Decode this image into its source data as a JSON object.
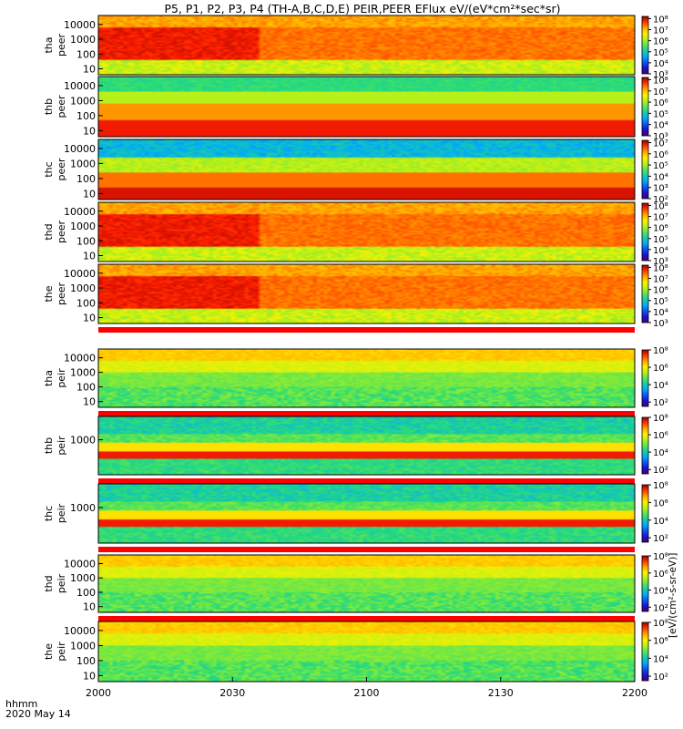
{
  "chart_data": {
    "type": "heatmap",
    "title": "P5, P1, P2, P3, P4 (TH-A,B,C,D,E) PEIR,PEER EFlux eV/(eV*cm²*sec*sr)",
    "x_ticks": [
      "2000",
      "2030",
      "2100",
      "2130",
      "2200"
    ],
    "x_label_line1": "hhmm",
    "x_label_line2": "2020 May 14",
    "colorbar_label": "[eV/(cm²-s-sr-eV)]",
    "colorbar_cmap": "rainbow",
    "panels": [
      {
        "probe": "tha",
        "kind": "peer",
        "yticks": [
          "10",
          "100",
          "1000",
          "10000"
        ],
        "ylog": [
          0.6,
          4.6
        ],
        "cbar_ticks": [
          "10⁸",
          "10⁷",
          "10⁶",
          "10⁵",
          "10⁴",
          "10³"
        ],
        "cbar_range": [
          3,
          8.2
        ],
        "gap_after": false
      },
      {
        "probe": "thb",
        "kind": "peer",
        "yticks": [
          "10",
          "100",
          "1000",
          "10000"
        ],
        "ylog": [
          0.6,
          4.6
        ],
        "cbar_ticks": [
          "10⁸",
          "10⁷",
          "10⁶",
          "10⁵",
          "10⁴",
          "10³"
        ],
        "cbar_range": [
          3,
          8.2
        ],
        "gap_after": false
      },
      {
        "probe": "thc",
        "kind": "peer",
        "yticks": [
          "10",
          "100",
          "1000",
          "10000"
        ],
        "ylog": [
          0.6,
          4.6
        ],
        "cbar_ticks": [
          "10⁷",
          "10⁶",
          "10⁵",
          "10⁴",
          "10³",
          "10²"
        ],
        "cbar_range": [
          2,
          7.2
        ],
        "gap_after": false
      },
      {
        "probe": "thd",
        "kind": "peer",
        "yticks": [
          "10",
          "100",
          "1000",
          "10000"
        ],
        "ylog": [
          0.6,
          4.6
        ],
        "cbar_ticks": [
          "10⁸",
          "10⁷",
          "10⁶",
          "10⁵",
          "10⁴",
          "10³"
        ],
        "cbar_range": [
          3,
          8.2
        ],
        "gap_after": false
      },
      {
        "probe": "the",
        "kind": "peer",
        "yticks": [
          "10",
          "100",
          "1000",
          "10000"
        ],
        "ylog": [
          0.6,
          4.6
        ],
        "cbar_ticks": [
          "10⁸",
          "10⁷",
          "10⁶",
          "10⁵",
          "10⁴",
          "10³"
        ],
        "cbar_range": [
          3,
          8.2
        ],
        "gap_after": true
      },
      {
        "probe": "tha",
        "kind": "peir",
        "yticks": [
          "10",
          "100",
          "1000",
          "10000"
        ],
        "ylog": [
          0.6,
          4.6
        ],
        "cbar_ticks": [
          "10⁸",
          "10⁶",
          "10⁴",
          "10²"
        ],
        "cbar_range": [
          1.5,
          8
        ],
        "gap_after": true
      },
      {
        "probe": "thb",
        "kind": "peir",
        "yticks": [
          "1000"
        ],
        "ylog": [
          0.6,
          4.6
        ],
        "cbar_ticks": [
          "10⁸",
          "10⁶",
          "10⁴",
          "10²"
        ],
        "cbar_range": [
          1.5,
          8
        ],
        "gap_after": true
      },
      {
        "probe": "thc",
        "kind": "peir",
        "yticks": [
          "1000"
        ],
        "ylog": [
          0.6,
          4.6
        ],
        "cbar_ticks": [
          "10⁸",
          "10⁶",
          "10⁴",
          "10²"
        ],
        "cbar_range": [
          1.5,
          8
        ],
        "gap_after": true
      },
      {
        "probe": "thd",
        "kind": "peir",
        "yticks": [
          "10",
          "100",
          "1000",
          "10000"
        ],
        "ylog": [
          0.6,
          4.6
        ],
        "cbar_ticks": [
          "10⁸",
          "10⁶",
          "10⁴",
          "10²"
        ],
        "cbar_range": [
          1.5,
          8
        ],
        "gap_after": true
      },
      {
        "probe": "the",
        "kind": "peir",
        "yticks": [
          "10",
          "100",
          "1000",
          "10000"
        ],
        "ylog": [
          0.6,
          4.6
        ],
        "cbar_ticks": [
          "10⁸",
          "10⁶",
          "10⁴",
          "10²"
        ],
        "cbar_range": [
          1.5,
          8
        ],
        "gap_after": false
      }
    ]
  }
}
